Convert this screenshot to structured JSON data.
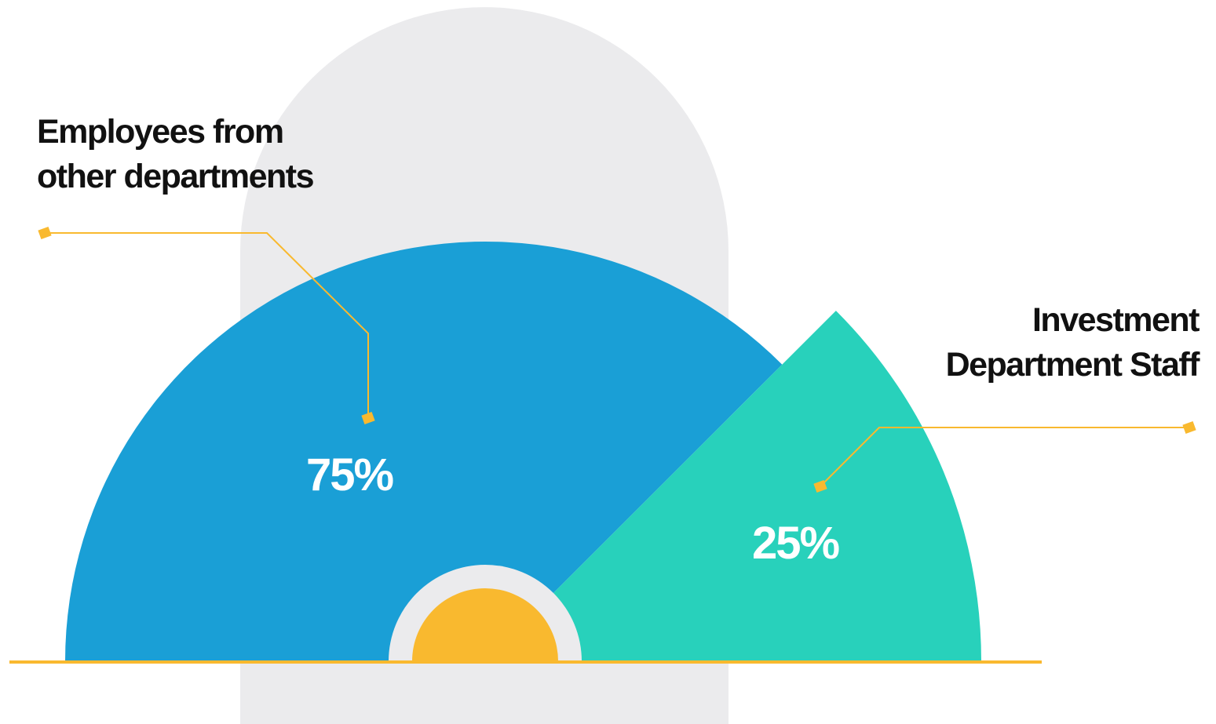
{
  "chart_data": {
    "type": "pie",
    "half": true,
    "categories": [
      "Employees from other departments",
      "Investment Department Staff"
    ],
    "values": [
      75,
      25
    ],
    "value_labels": [
      "75%",
      "25%"
    ],
    "colors": [
      "#1a9fd6",
      "#28d1bb"
    ]
  }
}
